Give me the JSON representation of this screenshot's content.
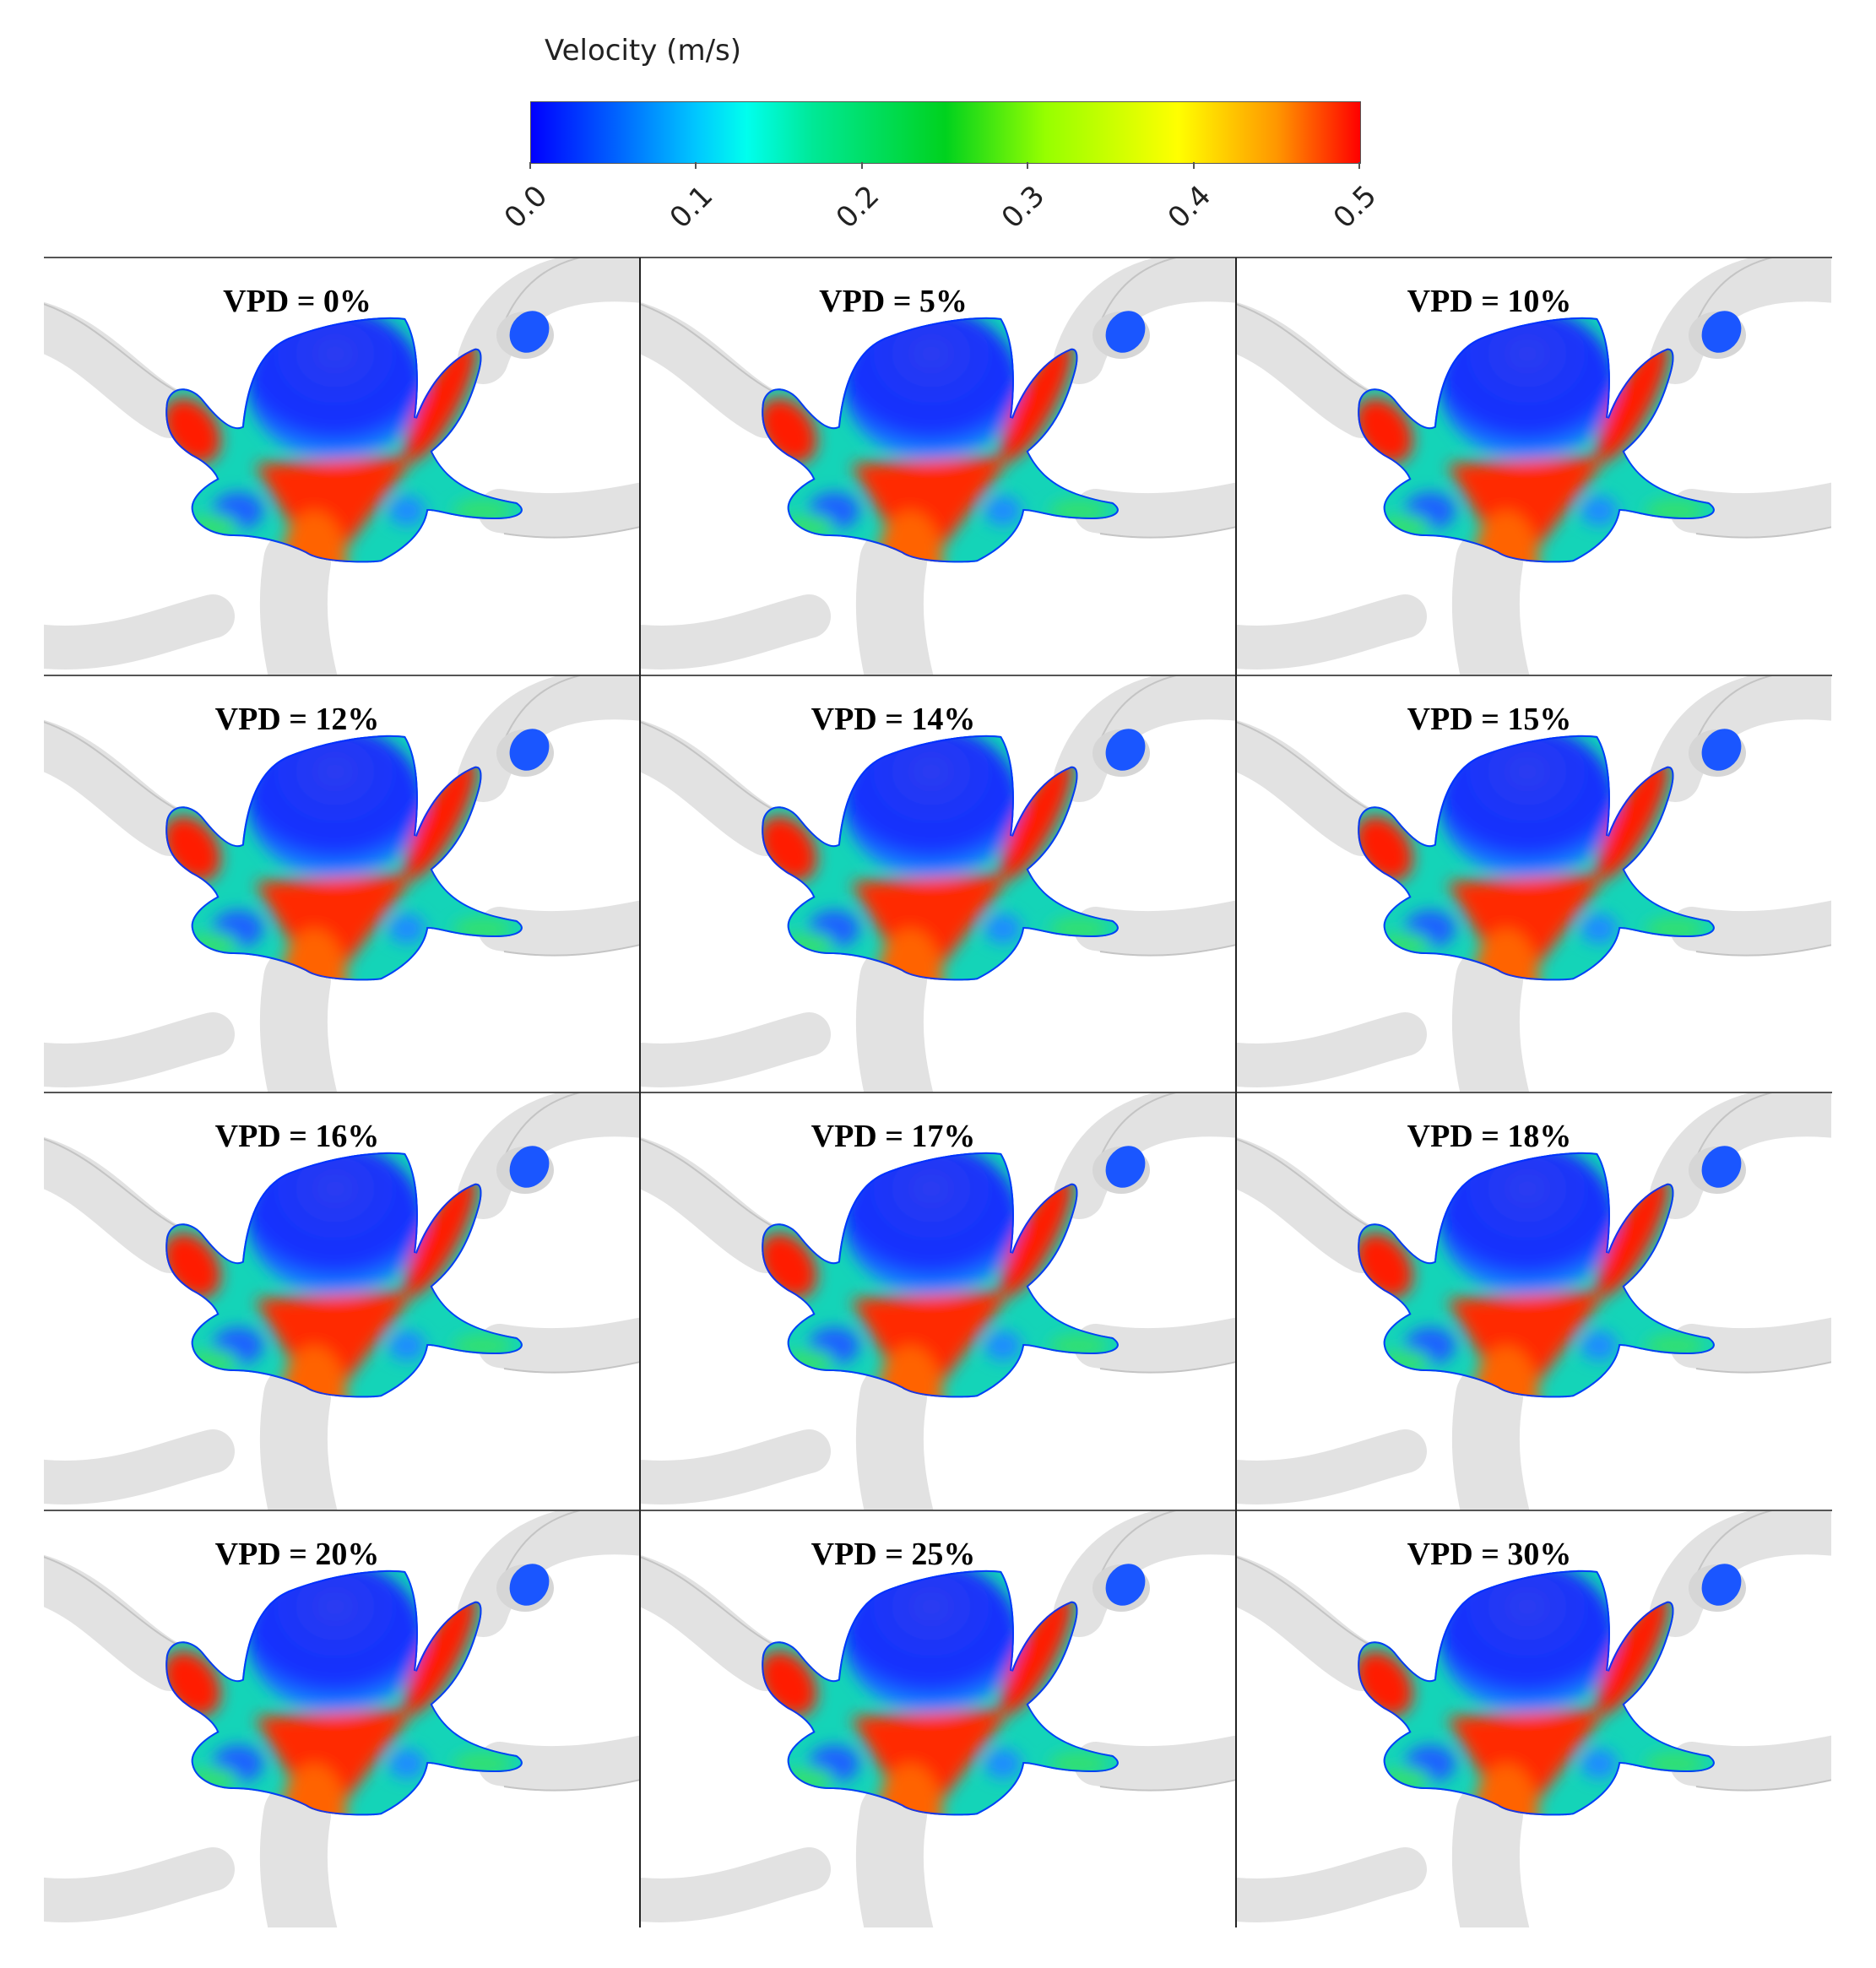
{
  "colorbar": {
    "title": "Velocity (m/s)",
    "min": 0.0,
    "max": 0.5,
    "tick_labels": [
      "0.0",
      "0.1",
      "0.2",
      "0.3",
      "0.4",
      "0.5"
    ],
    "colors": [
      "#0000ff",
      "#00c8ff",
      "#00ffee",
      "#00d21e",
      "#ffff00",
      "#ff9600",
      "#ff0000"
    ]
  },
  "panels": [
    {
      "label": "VPD = 0%"
    },
    {
      "label": "VPD = 5%"
    },
    {
      "label": "VPD = 10%"
    },
    {
      "label": "VPD = 12%"
    },
    {
      "label": "VPD = 14%"
    },
    {
      "label": "VPD = 15%"
    },
    {
      "label": "VPD = 16%"
    },
    {
      "label": "VPD = 17%"
    },
    {
      "label": "VPD = 18%"
    },
    {
      "label": "VPD = 20%"
    },
    {
      "label": "VPD = 25%"
    },
    {
      "label": "VPD = 30%"
    }
  ],
  "grid": {
    "rows": 4,
    "cols": 3
  }
}
